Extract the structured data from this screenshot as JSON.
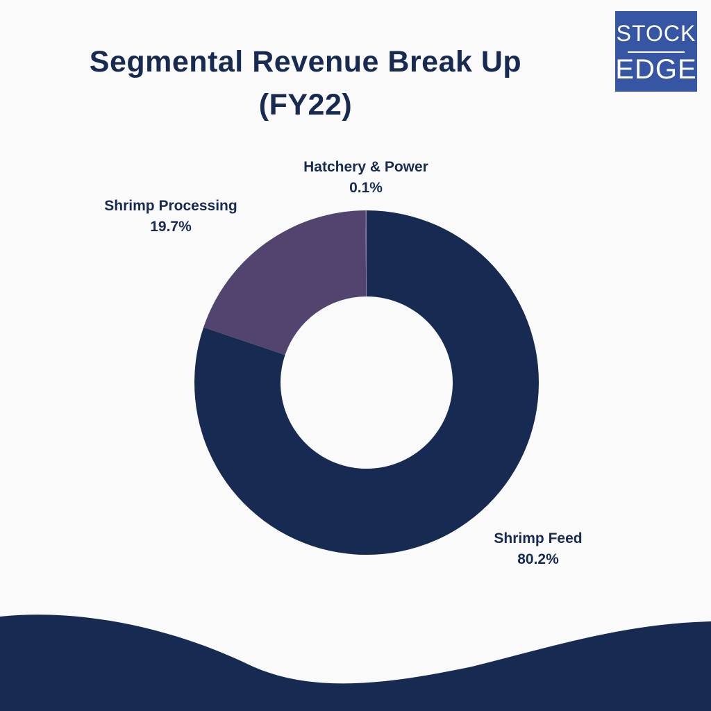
{
  "title_line1": "Segmental Revenue Break Up",
  "title_line2": "(FY22)",
  "logo": {
    "line1": "STOCK",
    "line2": "EDGE",
    "color": "#3656a4"
  },
  "colors": {
    "background": "#fafafa",
    "navy": "#172a52",
    "purple": "#52446e",
    "wave": "#172a52"
  },
  "chart_data": {
    "type": "pie",
    "style": "donut",
    "title": "Segmental Revenue Break Up (FY22)",
    "slices": [
      {
        "label": "Shrimp Feed",
        "value": 80.2,
        "display": "80.2%",
        "color": "#172a52"
      },
      {
        "label": "Shrimp Processing",
        "value": 19.7,
        "display": "19.7%",
        "color": "#52446e"
      },
      {
        "label": "Hatchery & Power",
        "value": 0.1,
        "display": "0.1%",
        "color": "#8a7fa3"
      }
    ],
    "start_angle": "12 o'clock",
    "direction": "clockwise",
    "legend": "none (labels placed beside slices)"
  }
}
